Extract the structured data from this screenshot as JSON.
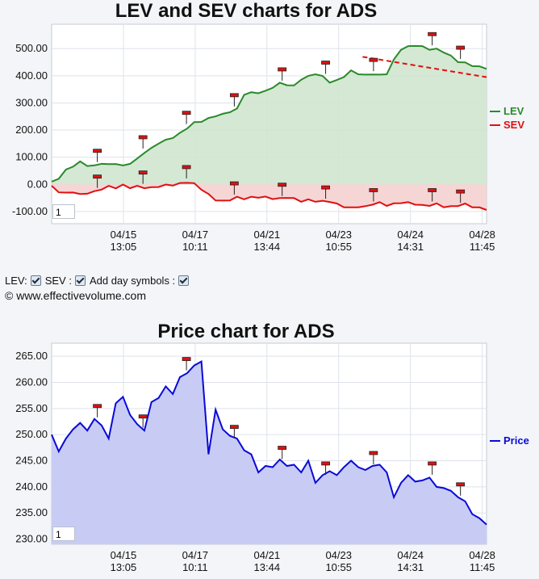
{
  "controls": {
    "lev_label": "LEV:",
    "sev_label": "SEV :",
    "day_symbols_label": "Add day symbols :"
  },
  "copyright": "© www.effectivevolume.com",
  "zoom_top": "1",
  "zoom_bottom": "1",
  "chart_data": [
    {
      "type": "area",
      "title": "LEV and SEV charts for ADS",
      "yticks": [
        "500.00",
        "400.00",
        "300.00",
        "200.00",
        "100.00",
        "0.00",
        "-100.00"
      ],
      "ylim": [
        -145,
        590
      ],
      "xticks": [
        [
          "04/15",
          "13:05"
        ],
        [
          "04/17",
          "10:11"
        ],
        [
          "04/21",
          "13:44"
        ],
        [
          "04/23",
          "10:55"
        ],
        [
          "04/24",
          "14:31"
        ],
        [
          "04/28",
          "11:45"
        ]
      ],
      "grid": true,
      "legend_position": "right",
      "series": [
        {
          "name": "LEV",
          "color": "#2a8a2a",
          "fill": "#cfe5cf",
          "values": [
            10,
            25,
            50,
            65,
            80,
            72,
            70,
            80,
            70,
            75,
            65,
            80,
            95,
            120,
            130,
            150,
            160,
            175,
            190,
            210,
            225,
            230,
            240,
            255,
            260,
            270,
            275,
            330,
            335,
            340,
            345,
            360,
            370,
            365,
            360,
            390,
            400,
            410,
            395,
            375,
            380,
            400,
            420,
            410,
            400,
            405,
            400,
            410,
            460,
            500,
            505,
            510,
            505,
            500,
            500,
            490,
            470,
            450,
            445,
            440,
            435,
            430
          ]
        },
        {
          "name": "SEV",
          "color": "#e01010",
          "fill": "#f5d0d0",
          "values": [
            -5,
            -25,
            -35,
            -30,
            -40,
            -30,
            -25,
            -15,
            -10,
            -15,
            -5,
            -10,
            -5,
            -10,
            -15,
            -10,
            -5,
            0,
            5,
            10,
            0,
            -20,
            -40,
            -55,
            -60,
            -55,
            -50,
            -55,
            -50,
            -45,
            -45,
            -50,
            -55,
            -50,
            -55,
            -60,
            -55,
            -60,
            -65,
            -65,
            -75,
            -80,
            -85,
            -80,
            -85,
            -75,
            -70,
            -75,
            -70,
            -65,
            -70,
            -75,
            -80,
            -75,
            -70,
            -80,
            -85,
            -80,
            -75,
            -80,
            -85,
            -90
          ]
        }
      ],
      "trendline": {
        "from": [
          0.715,
          470
        ],
        "to": [
          1.0,
          395
        ],
        "color": "#e01010"
      },
      "day_markers_lev": [
        0.105,
        0.21,
        0.31,
        0.42,
        0.53,
        0.63,
        0.74,
        0.875,
        0.94
      ],
      "day_markers_sev": [
        0.105,
        0.21,
        0.31,
        0.42,
        0.53,
        0.63,
        0.74,
        0.875,
        0.94
      ]
    },
    {
      "type": "area",
      "title": "Price chart for ADS",
      "yticks": [
        "265.00",
        "260.00",
        "255.00",
        "250.00",
        "245.00",
        "240.00",
        "235.00",
        "230.00"
      ],
      "ylim": [
        229,
        267.5
      ],
      "xticks": [
        [
          "04/15",
          "13:05"
        ],
        [
          "04/17",
          "10:11"
        ],
        [
          "04/21",
          "13:44"
        ],
        [
          "04/23",
          "10:55"
        ],
        [
          "04/24",
          "14:31"
        ],
        [
          "04/28",
          "11:45"
        ]
      ],
      "grid": true,
      "legend_position": "right",
      "series": [
        {
          "name": "Price",
          "color": "#0a0ad8",
          "fill": "#c8ccf5",
          "values": [
            250,
            247,
            249,
            251,
            252,
            251,
            253,
            252,
            249,
            256,
            257,
            254,
            252,
            251,
            256,
            257,
            259,
            258,
            261,
            262,
            263,
            264,
            246,
            255,
            251,
            250,
            249,
            247,
            246,
            243,
            244,
            244,
            245,
            244,
            244,
            243,
            245,
            241,
            242,
            243,
            242,
            244,
            245,
            244,
            243,
            244,
            244,
            243,
            238,
            241,
            242,
            241,
            241,
            242,
            240,
            240,
            239,
            238,
            237,
            235,
            234,
            233
          ]
        }
      ],
      "day_markers": [
        0.105,
        0.21,
        0.31,
        0.42,
        0.53,
        0.63,
        0.74,
        0.875,
        0.94
      ]
    }
  ]
}
